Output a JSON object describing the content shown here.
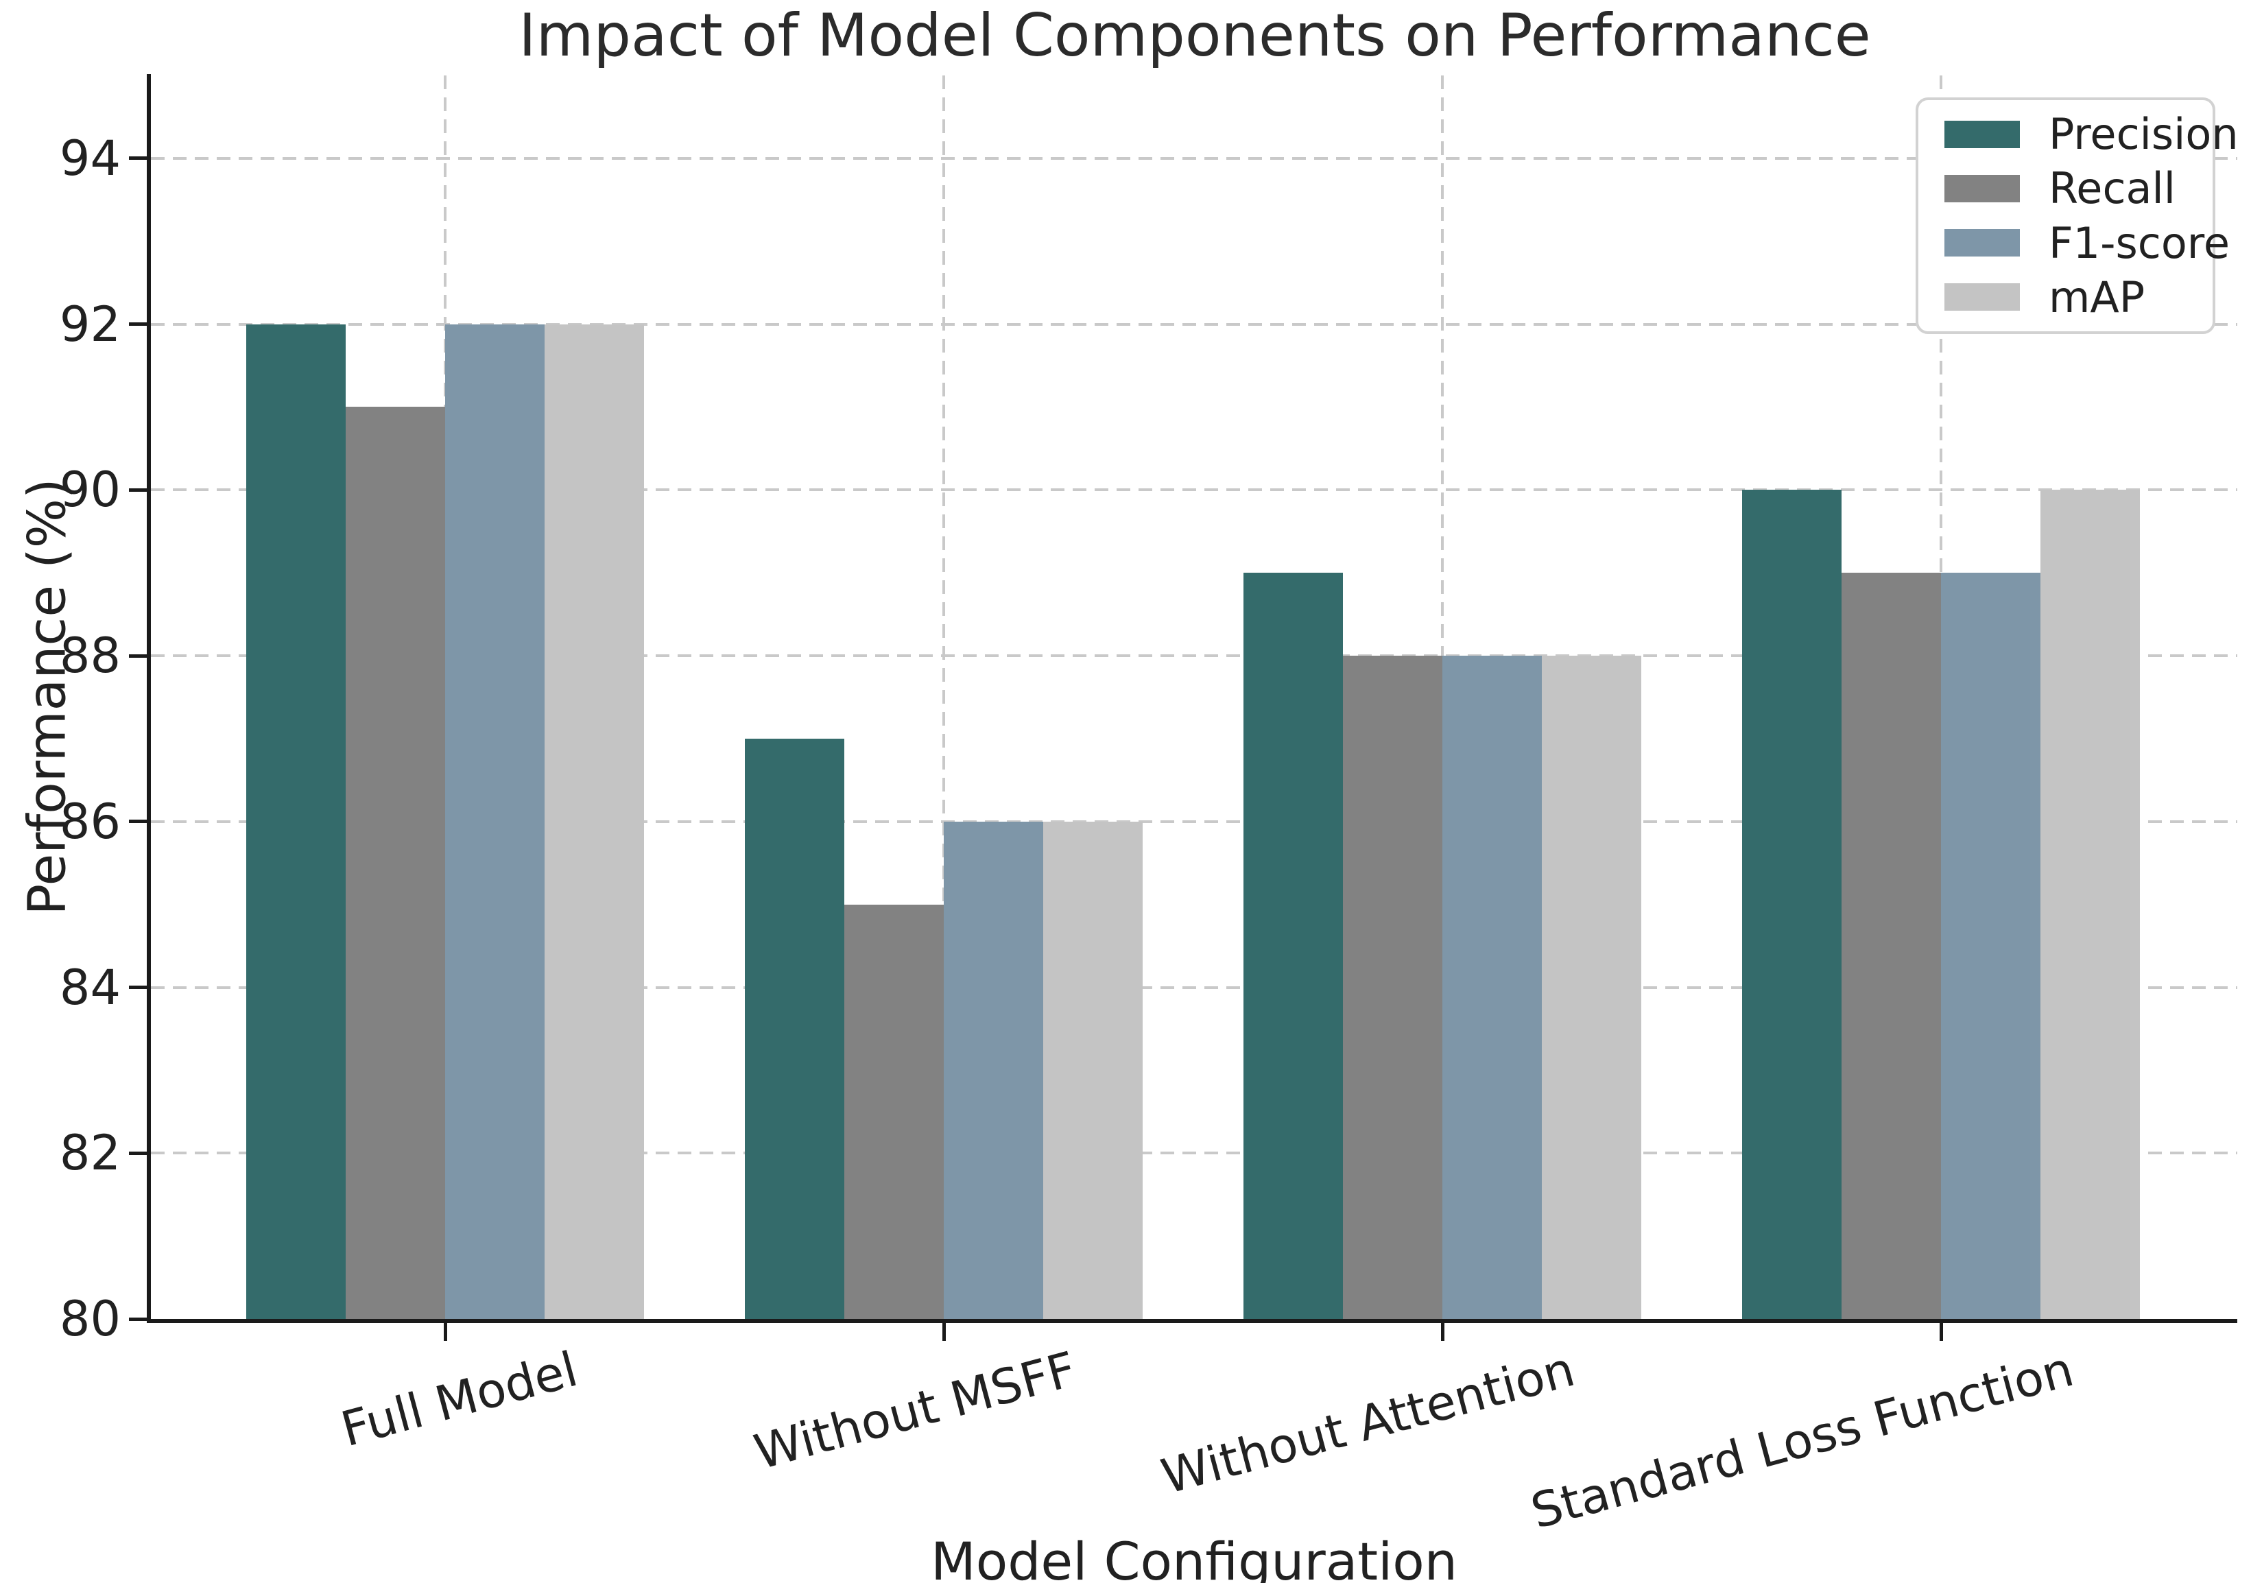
{
  "chart_data": {
    "type": "bar",
    "title": "Impact of Model Components on Performance",
    "xlabel": "Model Configuration",
    "ylabel": "Performance (%)",
    "categories": [
      "Full Model",
      "Without MSFF",
      "Without Attention",
      "Standard Loss Function"
    ],
    "series": [
      {
        "name": "Precision",
        "color": "#346b6b",
        "values": [
          92,
          87,
          89,
          90
        ]
      },
      {
        "name": "Recall",
        "color": "#828282",
        "values": [
          91,
          85,
          88,
          89
        ]
      },
      {
        "name": "F1-score",
        "color": "#7e96a8",
        "values": [
          92,
          86,
          88,
          89
        ]
      },
      {
        "name": "mAP",
        "color": "#c4c4c4",
        "values": [
          92,
          86,
          88,
          90
        ]
      }
    ],
    "ylim": [
      80,
      95.0
    ],
    "yticks": [
      80,
      82,
      84,
      86,
      88,
      90,
      92,
      94
    ],
    "grid": true,
    "grid_style": "dashed",
    "legend_position": "upper right"
  },
  "colors": {
    "background": "#ffffff",
    "spine": "#1a1a1a",
    "grid": "#c9c9c9",
    "text": "#212121"
  }
}
